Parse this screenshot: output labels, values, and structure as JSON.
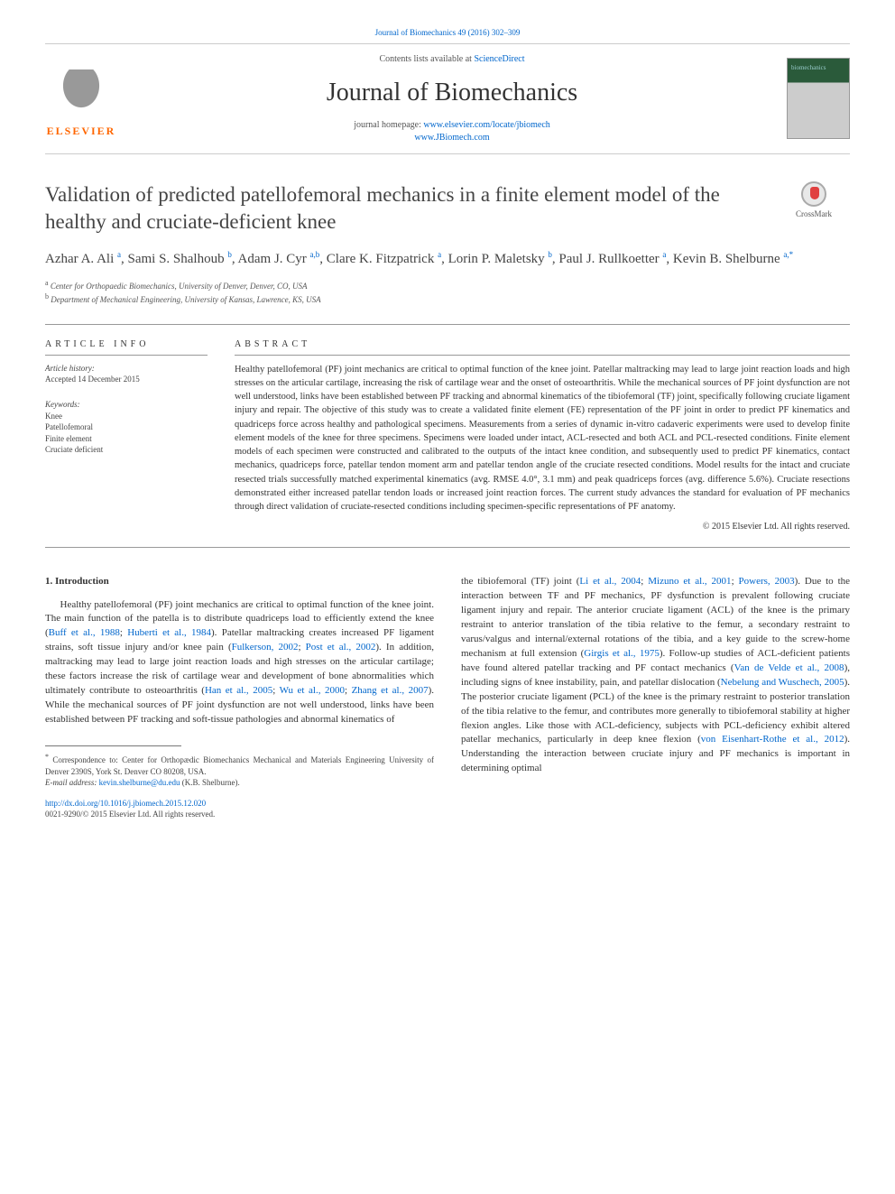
{
  "header": {
    "citation": "Journal of Biomechanics 49 (2016) 302–309",
    "contents_prefix": "Contents lists available at ",
    "contents_link": "ScienceDirect",
    "journal_name": "Journal of Biomechanics",
    "homepage_prefix": "journal homepage: ",
    "homepage_url1": "www.elsevier.com/locate/jbiomech",
    "homepage_url2": "www.JBiomech.com",
    "elsevier_label": "ELSEVIER",
    "crossmark_label": "CrossMark"
  },
  "article": {
    "title": "Validation of predicted patellofemoral mechanics in a finite element model of the healthy and cruciate-deficient knee",
    "authors_html": "Azhar A. Ali <sup>a</sup>, Sami S. Shalhoub <sup>b</sup>, Adam J. Cyr <sup>a,b</sup>, Clare K. Fitzpatrick <sup>a</sup>, Lorin P. Maletsky <sup>b</sup>, Paul J. Rullkoetter <sup>a</sup>, Kevin B. Shelburne <sup>a,*</sup>",
    "affiliations": [
      {
        "sup": "a",
        "text": "Center for Orthopaedic Biomechanics, University of Denver, Denver, CO, USA"
      },
      {
        "sup": "b",
        "text": "Department of Mechanical Engineering, University of Kansas, Lawrence, KS, USA"
      }
    ]
  },
  "info": {
    "heading": "ARTICLE INFO",
    "history_label": "Article history:",
    "accepted": "Accepted 14 December 2015",
    "keywords_label": "Keywords:",
    "keywords": [
      "Knee",
      "Patellofemoral",
      "Finite element",
      "Cruciate deficient"
    ]
  },
  "abstract": {
    "heading": "ABSTRACT",
    "text": "Healthy patellofemoral (PF) joint mechanics are critical to optimal function of the knee joint. Patellar maltracking may lead to large joint reaction loads and high stresses on the articular cartilage, increasing the risk of cartilage wear and the onset of osteoarthritis. While the mechanical sources of PF joint dysfunction are not well understood, links have been established between PF tracking and abnormal kinematics of the tibiofemoral (TF) joint, specifically following cruciate ligament injury and repair. The objective of this study was to create a validated finite element (FE) representation of the PF joint in order to predict PF kinematics and quadriceps force across healthy and pathological specimens. Measurements from a series of dynamic in-vitro cadaveric experiments were used to develop finite element models of the knee for three specimens. Specimens were loaded under intact, ACL-resected and both ACL and PCL-resected conditions. Finite element models of each specimen were constructed and calibrated to the outputs of the intact knee condition, and subsequently used to predict PF kinematics, contact mechanics, quadriceps force, patellar tendon moment arm and patellar tendon angle of the cruciate resected conditions. Model results for the intact and cruciate resected trials successfully matched experimental kinematics (avg. RMSE 4.0°, 3.1 mm) and peak quadriceps forces (avg. difference 5.6%). Cruciate resections demonstrated either increased patellar tendon loads or increased joint reaction forces. The current study advances the standard for evaluation of PF mechanics through direct validation of cruciate-resected conditions including specimen-specific representations of PF anatomy.",
    "copyright": "© 2015 Elsevier Ltd. All rights reserved."
  },
  "body": {
    "heading": "1. Introduction",
    "col1_p1_before_refs": "Healthy patellofemoral (PF) joint mechanics are critical to optimal function of the knee joint. The main function of the patella is to distribute quadriceps load to efficiently extend the knee (",
    "ref1": "Buff et al., 1988",
    "sep1": "; ",
    "ref2": "Huberti et al., 1984",
    "after_ref2": "). Patellar maltracking creates increased PF ligament strains, soft tissue injury and/or knee pain (",
    "ref3": "Fulkerson, 2002",
    "sep2": "; ",
    "ref4": "Post et al., 2002",
    "after_ref4": "). In addition, maltracking may lead to large joint reaction loads and high stresses on the articular cartilage; these factors increase the risk of cartilage wear and development of bone abnormalities which ultimately contribute to osteoarthritis (",
    "ref5": "Han et al., 2005",
    "sep3": "; ",
    "ref6": "Wu et al., 2000",
    "sep4": "; ",
    "ref7": "Zhang et al., 2007",
    "after_ref7": "). While the mechanical sources of PF joint dysfunction are not well understood, links have been established between PF tracking and soft-tissue pathologies and abnormal kinematics of",
    "col2_start": "the tibiofemoral (TF) joint (",
    "ref8": "Li et al., 2004",
    "sep5": "; ",
    "ref9": "Mizuno et al., 2001",
    "sep6": "; ",
    "ref10": "Powers, 2003",
    "after_ref10": "). Due to the interaction between TF and PF mechanics, PF dysfunction is prevalent following cruciate ligament injury and repair. The anterior cruciate ligament (ACL) of the knee is the primary restraint to anterior translation of the tibia relative to the femur, a secondary restraint to varus/valgus and internal/external rotations of the tibia, and a key guide to the screw-home mechanism at full extension (",
    "ref11": "Girgis et al., 1975",
    "after_ref11": "). Follow-up studies of ACL-deficient patients have found altered patellar tracking and PF contact mechanics (",
    "ref12": "Van de Velde et al., 2008",
    "after_ref12": "), including signs of knee instability, pain, and patellar dislocation (",
    "ref13": "Nebelung and Wuschech, 2005",
    "after_ref13": "). The posterior cruciate ligament (PCL) of the knee is the primary restraint to posterior translation of the tibia relative to the femur, and contributes more generally to tibiofemoral stability at higher flexion angles. Like those with ACL-deficiency, subjects with PCL-deficiency exhibit altered patellar mechanics, particularly in deep knee flexion (",
    "ref14": "von Eisenhart-Rothe et al., 2012",
    "after_ref14": "). Understanding the interaction between cruciate injury and PF mechanics is important in determining optimal"
  },
  "footnote": {
    "corr_symbol": "*",
    "corr_text": "Correspondence to: Center for Orthopædic Biomechanics Mechanical and Materials Engineering University of Denver 2390S, York St. Denver CO 80208, USA.",
    "email_label": "E-mail address: ",
    "email": "kevin.shelburne@du.edu",
    "email_suffix": " (K.B. Shelburne).",
    "doi": "http://dx.doi.org/10.1016/j.jbiomech.2015.12.020",
    "issn": "0021-9290/© 2015 Elsevier Ltd. All rights reserved."
  },
  "colors": {
    "link": "#0066cc",
    "orange": "#ff6600",
    "text": "#333333",
    "rule": "#999999"
  },
  "typography": {
    "title_fontsize": 23,
    "journal_fontsize": 28,
    "body_fontsize": 11,
    "abstract_fontsize": 10.5,
    "info_fontsize": 9
  }
}
